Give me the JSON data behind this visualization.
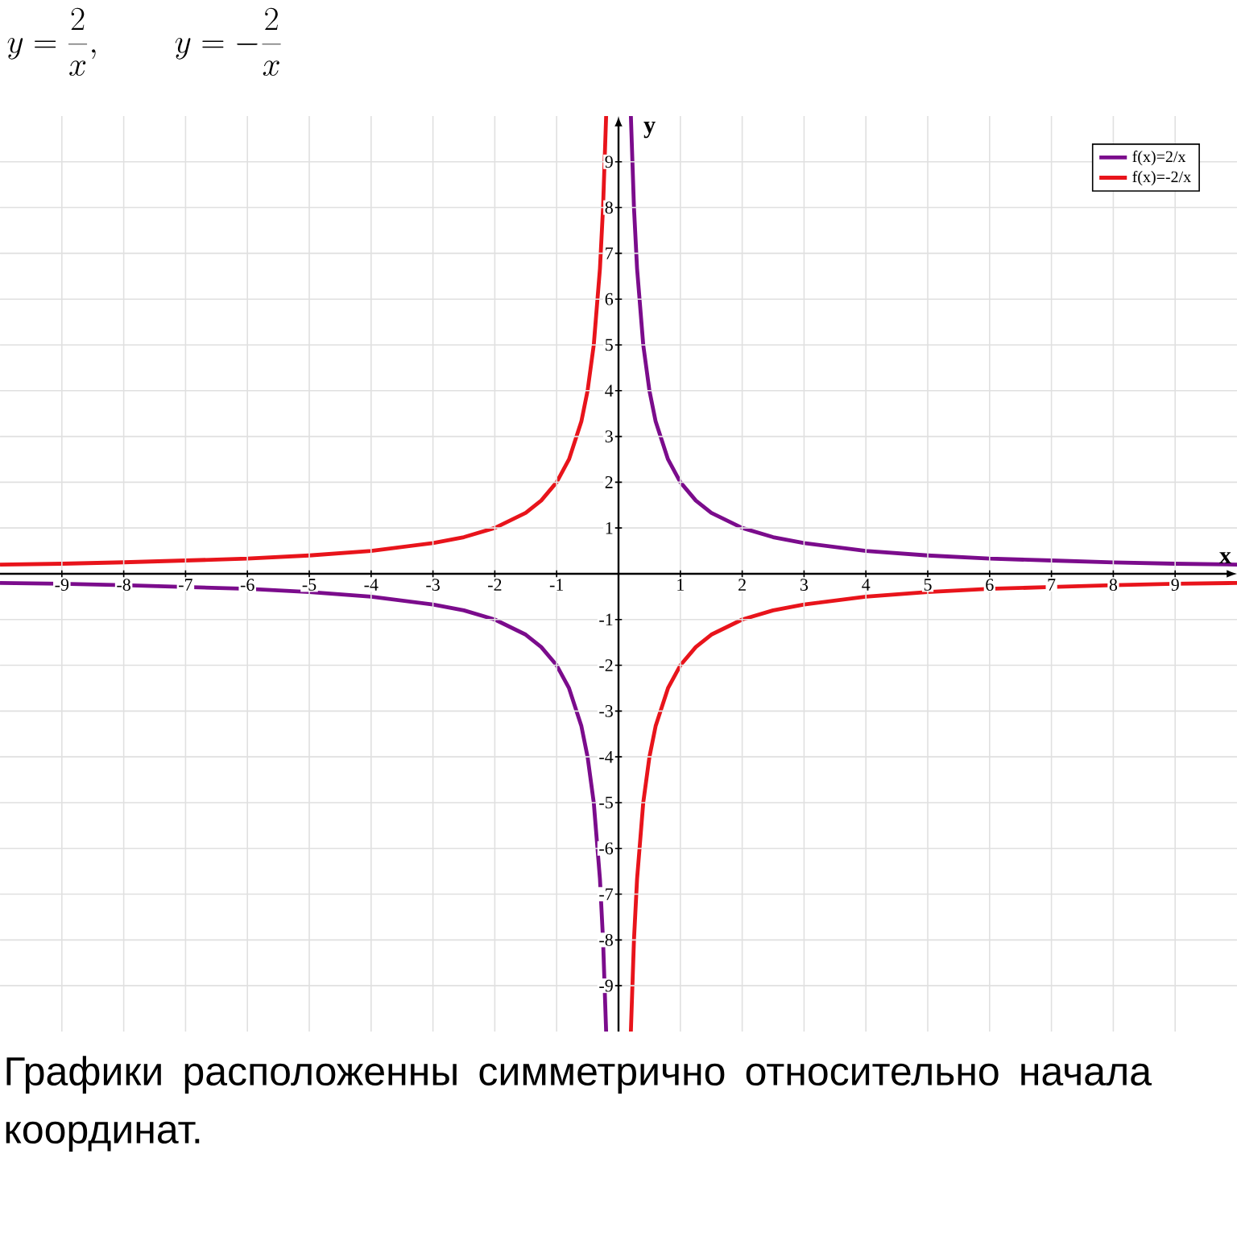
{
  "chart_data": {
    "type": "line",
    "title": "y=\\frac{2}{x},\\qquad y=-\\frac{2}{x}",
    "xlabel": "x",
    "ylabel": "y",
    "series": [
      {
        "name": "f(x)=2/x",
        "color": "#7b0c8c",
        "x": [
          -10,
          -9,
          -8,
          -7,
          -6,
          -5,
          -4,
          -3,
          -2.5,
          -2,
          -1.5,
          -1.25,
          -1,
          -0.8,
          -0.6,
          -0.5,
          -0.4,
          -0.3,
          -0.25,
          -0.2,
          0,
          0.2,
          0.25,
          0.3,
          0.4,
          0.5,
          0.6,
          0.8,
          1,
          1.25,
          1.5,
          2,
          2.5,
          3,
          4,
          5,
          6,
          7,
          8,
          9,
          10
        ],
        "values": [
          -0.2,
          -0.22,
          -0.25,
          -0.29,
          -0.33,
          -0.4,
          -0.5,
          -0.67,
          -0.8,
          -1,
          -1.33,
          -1.6,
          -2,
          -2.5,
          -3.33,
          -4,
          -5,
          -6.67,
          -8,
          -10,
          null,
          10,
          8,
          6.67,
          5,
          4,
          3.33,
          2.5,
          2,
          1.6,
          1.33,
          1,
          0.8,
          0.67,
          0.5,
          0.4,
          0.33,
          0.29,
          0.25,
          0.22,
          0.2
        ]
      },
      {
        "name": "f(x)=-2/x",
        "color": "#e8141b",
        "x": [
          -10,
          -9,
          -8,
          -7,
          -6,
          -5,
          -4,
          -3,
          -2.5,
          -2,
          -1.5,
          -1.25,
          -1,
          -0.8,
          -0.6,
          -0.5,
          -0.4,
          -0.3,
          -0.25,
          -0.2,
          0,
          0.2,
          0.25,
          0.3,
          0.4,
          0.5,
          0.6,
          0.8,
          1,
          1.25,
          1.5,
          2,
          2.5,
          3,
          4,
          5,
          6,
          7,
          8,
          9,
          10
        ],
        "values": [
          0.2,
          0.22,
          0.25,
          0.29,
          0.33,
          0.4,
          0.5,
          0.67,
          0.8,
          1,
          1.33,
          1.6,
          2,
          2.5,
          3.33,
          4,
          5,
          6.67,
          8,
          10,
          null,
          -10,
          -8,
          -6.67,
          -5,
          -4,
          -3.33,
          -2.5,
          -2,
          -1.6,
          -1.33,
          -1,
          -0.8,
          -0.67,
          -0.5,
          -0.4,
          -0.33,
          -0.29,
          -0.25,
          -0.22,
          -0.2
        ]
      }
    ],
    "xlim": [
      -10,
      10
    ],
    "ylim": [
      -10,
      10
    ],
    "xticks": [
      -9,
      -8,
      -7,
      -6,
      -5,
      -4,
      -3,
      -2,
      -1,
      1,
      2,
      3,
      4,
      5,
      6,
      7,
      8,
      9
    ],
    "yticks": [
      -9,
      -8,
      -7,
      -6,
      -5,
      -4,
      -3,
      -2,
      -1,
      1,
      2,
      3,
      4,
      5,
      6,
      7,
      8,
      9
    ],
    "grid": true,
    "legend": "top right",
    "marker": "none",
    "line_style": "solid",
    "annotations": [
      "Графики расположенны симметрично относительно начала координат."
    ]
  }
}
